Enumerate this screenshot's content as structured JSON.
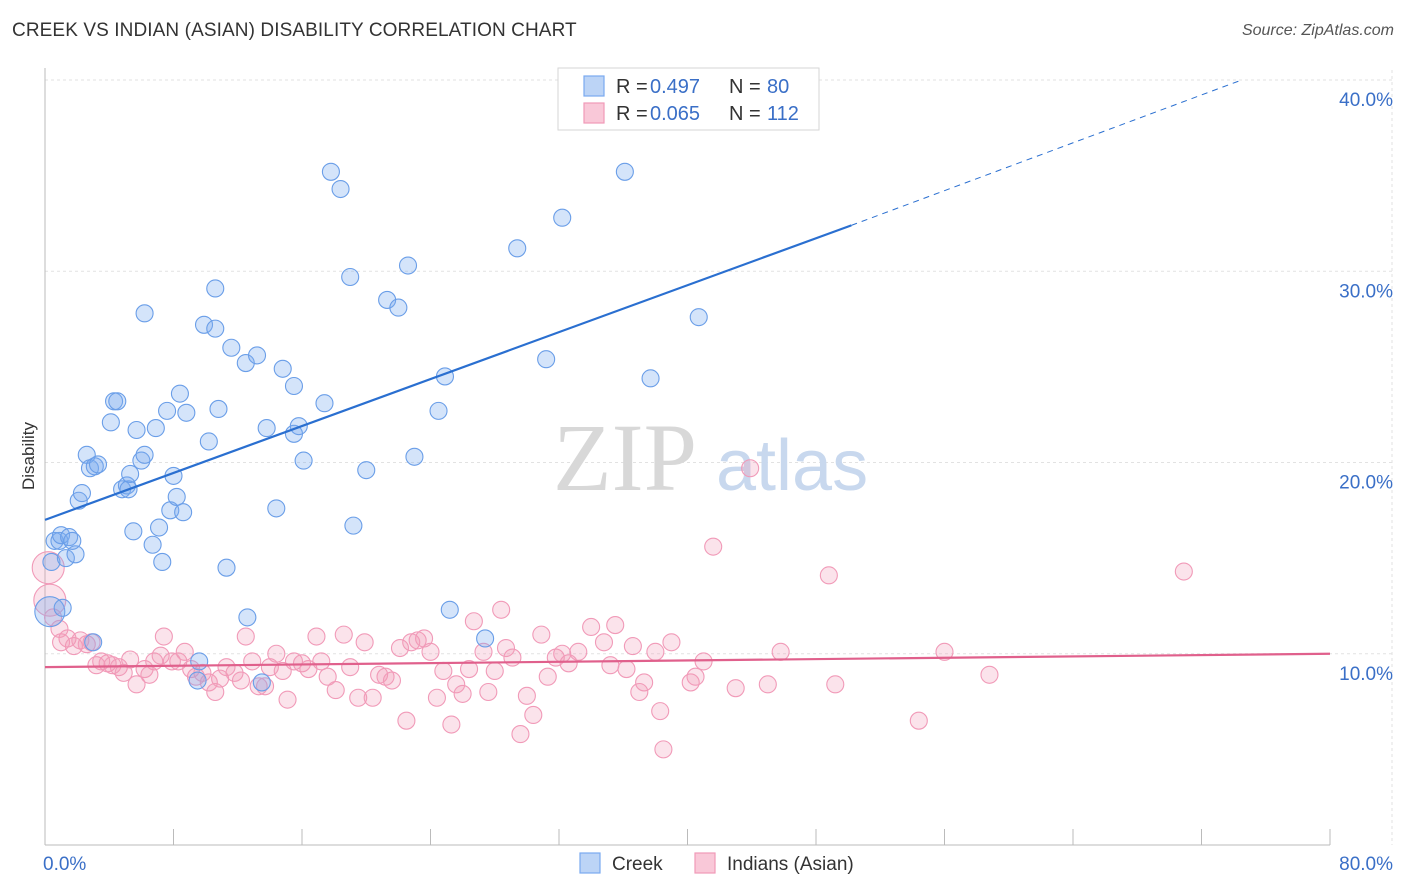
{
  "title": "CREEK VS INDIAN (ASIAN) DISABILITY CORRELATION CHART",
  "source": "Source: ZipAtlas.com",
  "watermark": {
    "zip": "ZIP",
    "atlas": "atlas"
  },
  "colors": {
    "creek": "#7aaaf0",
    "creek_line": "#2a6fd0",
    "indians": "#f19ab8",
    "indians_line": "#e0608c",
    "accent_text": "#3a6fc7"
  },
  "legend": {
    "creek": {
      "r_label": "R = ",
      "r_value": "0.497",
      "n_label": "N = ",
      "n_value": "80"
    },
    "indians": {
      "r_label": "R = ",
      "r_value": "0.065",
      "n_label": "N = ",
      "n_value": "112"
    }
  },
  "bottom_legend": [
    "Creek",
    "Indians (Asian)"
  ],
  "chart_data": {
    "type": "scatter",
    "title": "CREEK VS INDIAN (ASIAN) DISABILITY CORRELATION CHART",
    "xlabel": "",
    "ylabel": "Disability",
    "xlim": [
      0,
      80
    ],
    "ylim": [
      0,
      40
    ],
    "x_tick_labels": [
      "0.0%",
      "80.0%"
    ],
    "y_tick_labels": [
      "10.0%",
      "20.0%",
      "30.0%",
      "40.0%"
    ],
    "y_ticks": [
      10,
      20,
      30,
      40
    ],
    "grid": true,
    "legend_position": "top-center",
    "series": [
      {
        "name": "Creek",
        "r": 0.497,
        "n": 80,
        "trend": {
          "x0": 0,
          "y0": 17.0,
          "x1": 50.2,
          "y1": 32.4,
          "dash_to_x": 74.5,
          "dash_to_y": 40.0
        },
        "points": [
          [
            0.3,
            12.2
          ],
          [
            0.4,
            14.8
          ],
          [
            0.6,
            15.9
          ],
          [
            0.9,
            15.9
          ],
          [
            1.0,
            16.2
          ],
          [
            1.5,
            16.1
          ],
          [
            1.3,
            15.0
          ],
          [
            1.9,
            15.2
          ],
          [
            1.7,
            15.9
          ],
          [
            2.1,
            18.0
          ],
          [
            2.3,
            18.4
          ],
          [
            2.6,
            20.4
          ],
          [
            2.8,
            19.7
          ],
          [
            3.1,
            19.8
          ],
          [
            3.3,
            19.9
          ],
          [
            3.0,
            10.6
          ],
          [
            4.1,
            22.1
          ],
          [
            4.3,
            23.2
          ],
          [
            4.5,
            23.2
          ],
          [
            4.8,
            18.6
          ],
          [
            5.1,
            18.8
          ],
          [
            5.2,
            18.6
          ],
          [
            5.3,
            19.4
          ],
          [
            5.5,
            16.4
          ],
          [
            5.7,
            21.7
          ],
          [
            6.0,
            20.1
          ],
          [
            6.2,
            20.4
          ],
          [
            6.2,
            27.8
          ],
          [
            6.7,
            15.7
          ],
          [
            6.9,
            21.8
          ],
          [
            7.1,
            16.6
          ],
          [
            7.3,
            14.8
          ],
          [
            7.6,
            22.7
          ],
          [
            7.8,
            17.5
          ],
          [
            8.0,
            19.3
          ],
          [
            8.2,
            18.2
          ],
          [
            8.4,
            23.6
          ],
          [
            8.6,
            17.4
          ],
          [
            8.8,
            22.6
          ],
          [
            9.6,
            9.6
          ],
          [
            9.5,
            8.6
          ],
          [
            9.9,
            27.2
          ],
          [
            10.2,
            21.1
          ],
          [
            10.6,
            29.1
          ],
          [
            10.6,
            27.0
          ],
          [
            10.8,
            22.8
          ],
          [
            11.3,
            14.5
          ],
          [
            11.6,
            26.0
          ],
          [
            12.5,
            25.2
          ],
          [
            12.6,
            11.9
          ],
          [
            13.2,
            25.6
          ],
          [
            13.5,
            8.5
          ],
          [
            13.8,
            21.8
          ],
          [
            14.4,
            17.6
          ],
          [
            14.8,
            24.9
          ],
          [
            15.5,
            21.5
          ],
          [
            15.5,
            24.0
          ],
          [
            15.8,
            21.9
          ],
          [
            16.1,
            20.1
          ],
          [
            17.4,
            23.1
          ],
          [
            17.8,
            35.2
          ],
          [
            18.4,
            34.3
          ],
          [
            19.0,
            29.7
          ],
          [
            19.2,
            16.7
          ],
          [
            20.0,
            19.6
          ],
          [
            21.3,
            28.5
          ],
          [
            22.0,
            28.1
          ],
          [
            22.6,
            30.3
          ],
          [
            23.0,
            20.3
          ],
          [
            24.5,
            22.7
          ],
          [
            24.9,
            24.5
          ],
          [
            25.2,
            12.3
          ],
          [
            27.4,
            10.8
          ],
          [
            29.4,
            31.2
          ],
          [
            31.2,
            25.4
          ],
          [
            32.2,
            32.8
          ],
          [
            36.1,
            35.2
          ],
          [
            37.7,
            24.4
          ],
          [
            40.7,
            27.6
          ],
          [
            1.1,
            12.4
          ]
        ]
      },
      {
        "name": "Indians (Asian)",
        "r": 0.065,
        "n": 112,
        "trend": {
          "x0": 0,
          "y0": 9.3,
          "x1": 80,
          "y1": 10.0
        },
        "points": [
          [
            0.2,
            14.5
          ],
          [
            0.3,
            12.8
          ],
          [
            0.5,
            11.9
          ],
          [
            0.9,
            11.3
          ],
          [
            1.4,
            10.8
          ],
          [
            1.8,
            10.4
          ],
          [
            2.2,
            10.7
          ],
          [
            2.6,
            10.5
          ],
          [
            2.9,
            10.6
          ],
          [
            3.2,
            9.4
          ],
          [
            3.5,
            9.6
          ],
          [
            3.9,
            9.5
          ],
          [
            4.2,
            9.4
          ],
          [
            4.6,
            9.3
          ],
          [
            4.9,
            9.0
          ],
          [
            5.3,
            9.7
          ],
          [
            5.7,
            8.4
          ],
          [
            6.2,
            9.2
          ],
          [
            6.5,
            8.9
          ],
          [
            6.8,
            9.6
          ],
          [
            7.2,
            9.9
          ],
          [
            7.4,
            10.9
          ],
          [
            7.9,
            9.6
          ],
          [
            8.3,
            9.6
          ],
          [
            8.7,
            10.1
          ],
          [
            9.1,
            9.2
          ],
          [
            9.4,
            8.8
          ],
          [
            9.8,
            9.0
          ],
          [
            10.2,
            8.5
          ],
          [
            10.6,
            8.0
          ],
          [
            10.9,
            8.7
          ],
          [
            11.3,
            9.3
          ],
          [
            11.8,
            9.0
          ],
          [
            12.2,
            8.6
          ],
          [
            12.5,
            10.9
          ],
          [
            12.9,
            9.6
          ],
          [
            13.3,
            8.3
          ],
          [
            13.7,
            8.3
          ],
          [
            14.0,
            9.3
          ],
          [
            14.4,
            10.0
          ],
          [
            14.8,
            9.1
          ],
          [
            15.1,
            7.6
          ],
          [
            15.5,
            9.6
          ],
          [
            16.0,
            9.5
          ],
          [
            16.4,
            9.2
          ],
          [
            16.9,
            10.9
          ],
          [
            17.2,
            9.6
          ],
          [
            17.6,
            8.8
          ],
          [
            18.1,
            8.1
          ],
          [
            18.6,
            11.0
          ],
          [
            19.0,
            9.3
          ],
          [
            19.5,
            7.7
          ],
          [
            19.9,
            10.6
          ],
          [
            20.4,
            7.7
          ],
          [
            20.8,
            8.9
          ],
          [
            21.2,
            8.8
          ],
          [
            21.6,
            8.6
          ],
          [
            22.1,
            10.3
          ],
          [
            22.5,
            6.5
          ],
          [
            22.8,
            10.6
          ],
          [
            23.2,
            10.7
          ],
          [
            23.6,
            10.8
          ],
          [
            24.0,
            10.1
          ],
          [
            24.4,
            7.7
          ],
          [
            24.8,
            9.1
          ],
          [
            25.3,
            6.3
          ],
          [
            25.6,
            8.4
          ],
          [
            26.0,
            7.9
          ],
          [
            26.4,
            9.2
          ],
          [
            26.7,
            11.7
          ],
          [
            27.3,
            10.1
          ],
          [
            27.6,
            8.0
          ],
          [
            28.0,
            9.1
          ],
          [
            28.4,
            12.3
          ],
          [
            28.7,
            10.3
          ],
          [
            29.1,
            9.8
          ],
          [
            29.6,
            5.8
          ],
          [
            30.0,
            7.8
          ],
          [
            30.4,
            6.8
          ],
          [
            30.9,
            11.0
          ],
          [
            31.3,
            8.8
          ],
          [
            31.8,
            9.8
          ],
          [
            32.2,
            10.0
          ],
          [
            32.6,
            9.5
          ],
          [
            33.2,
            10.1
          ],
          [
            34.0,
            11.4
          ],
          [
            34.8,
            10.6
          ],
          [
            35.5,
            11.5
          ],
          [
            35.2,
            9.4
          ],
          [
            36.2,
            9.2
          ],
          [
            36.6,
            10.4
          ],
          [
            37.0,
            8.0
          ],
          [
            37.3,
            8.5
          ],
          [
            38.0,
            10.1
          ],
          [
            38.3,
            7.0
          ],
          [
            38.5,
            5.0
          ],
          [
            39.0,
            10.6
          ],
          [
            40.2,
            8.5
          ],
          [
            40.5,
            8.8
          ],
          [
            41.0,
            9.6
          ],
          [
            41.6,
            15.6
          ],
          [
            43.9,
            19.7
          ],
          [
            43.0,
            8.2
          ],
          [
            45.0,
            8.4
          ],
          [
            45.8,
            10.1
          ],
          [
            48.8,
            14.1
          ],
          [
            49.2,
            8.4
          ],
          [
            54.4,
            6.5
          ],
          [
            56.0,
            10.1
          ],
          [
            58.8,
            8.9
          ],
          [
            70.9,
            14.3
          ],
          [
            1.0,
            10.6
          ]
        ]
      }
    ]
  }
}
